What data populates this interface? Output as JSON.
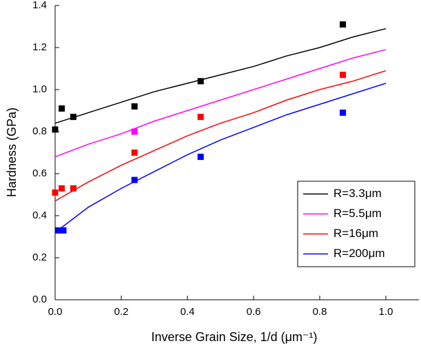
{
  "chart_data": {
    "type": "scatter",
    "x_label": "Inverse Grain Size, 1/d (μm⁻¹)",
    "y_label": "Hardness (GPa)",
    "xlim": [
      0,
      1.1
    ],
    "ylim": [
      0,
      1.4
    ],
    "xticks": [
      {
        "value": 0,
        "label": "0.0"
      },
      0.2,
      0.4,
      0.6,
      0.8,
      {
        "value": 1,
        "label": "1.0"
      }
    ],
    "yticks": [
      {
        "value": 0,
        "label": "0.0"
      },
      0.2,
      0.4,
      0.6,
      0.8,
      {
        "value": 1,
        "label": "1.0"
      },
      1.2,
      1.4
    ],
    "legend": "lower right",
    "series": [
      {
        "name": "R=3.3μm",
        "color": "#000000",
        "x": [
          0,
          0.02,
          0.055,
          0.24,
          0.44,
          0.87
        ],
        "values": [
          0.81,
          0.91,
          0.87,
          0.92,
          1.04,
          1.31
        ],
        "line_x": [
          0,
          0.1,
          0.2,
          0.3,
          0.4,
          0.5,
          0.6,
          0.7,
          0.8,
          0.9,
          1.0
        ],
        "line_values": [
          0.84,
          0.89,
          0.94,
          0.99,
          1.03,
          1.07,
          1.11,
          1.16,
          1.2,
          1.25,
          1.29
        ]
      },
      {
        "name": "R=5.5μm",
        "color": "#ff00ff",
        "x": [
          0.24
        ],
        "values": [
          0.8
        ],
        "line_x": [
          0,
          0.1,
          0.2,
          0.3,
          0.4,
          0.5,
          0.6,
          0.7,
          0.8,
          0.9,
          1.0
        ],
        "line_values": [
          0.68,
          0.74,
          0.79,
          0.85,
          0.9,
          0.95,
          1.0,
          1.05,
          1.1,
          1.15,
          1.19
        ]
      },
      {
        "name": "R=16μm",
        "color": "#ff0000",
        "x": [
          0,
          0.02,
          0.055,
          0.24,
          0.44,
          0.87
        ],
        "values": [
          0.51,
          0.53,
          0.53,
          0.7,
          0.87,
          1.07
        ],
        "line_x": [
          0,
          0.1,
          0.2,
          0.3,
          0.4,
          0.5,
          0.6,
          0.7,
          0.8,
          0.9,
          1.0
        ],
        "line_values": [
          0.47,
          0.56,
          0.64,
          0.71,
          0.78,
          0.84,
          0.89,
          0.95,
          1.0,
          1.04,
          1.09
        ]
      },
      {
        "name": "R=200μm",
        "color": "#0000ff",
        "x": [
          0.01,
          0.025,
          0.24,
          0.44,
          0.87
        ],
        "values": [
          0.33,
          0.33,
          0.57,
          0.68,
          0.89
        ],
        "line_x": [
          0,
          0.1,
          0.2,
          0.3,
          0.4,
          0.5,
          0.6,
          0.7,
          0.8,
          0.9,
          1.0
        ],
        "line_values": [
          0.32,
          0.44,
          0.53,
          0.61,
          0.69,
          0.76,
          0.82,
          0.88,
          0.93,
          0.98,
          1.03
        ]
      }
    ]
  }
}
